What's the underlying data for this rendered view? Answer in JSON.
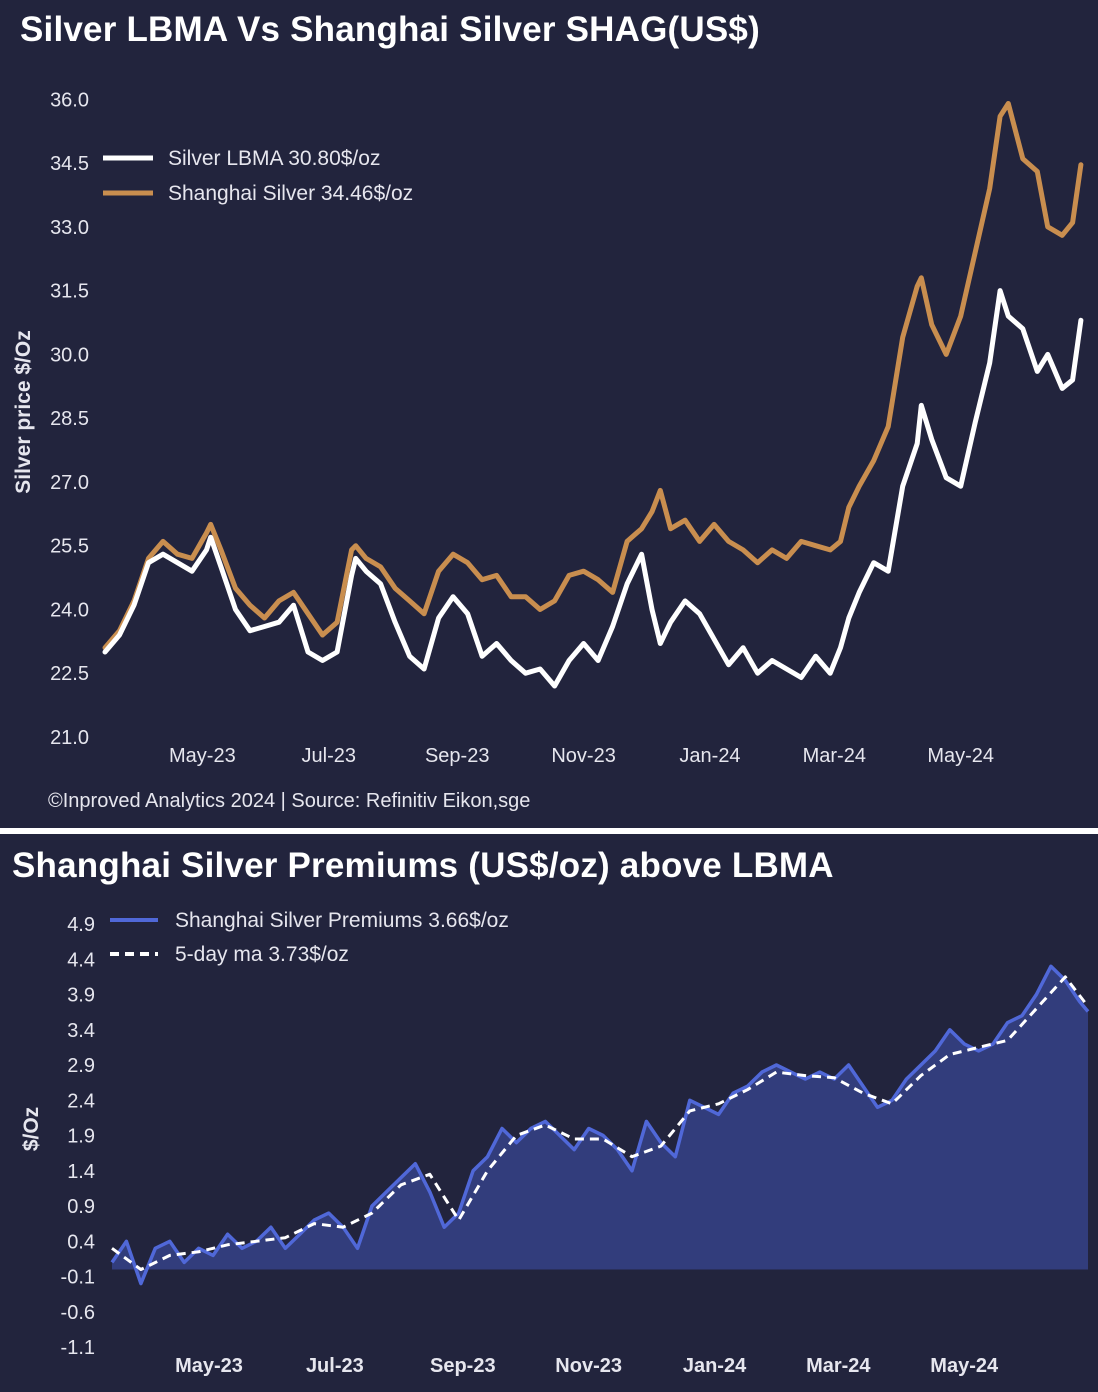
{
  "colors": {
    "background": "#22243d",
    "lbma": "#ffffff",
    "shanghai": "#c98e4f",
    "premium_line": "#5068d8",
    "premium_fill": "#323d7c",
    "ma_line": "#ffffff",
    "text": "#e6e6ee"
  },
  "chart_data": [
    {
      "type": "line",
      "title": "Silver LBMA Vs Shanghai Silver SHAG(US$)",
      "xlabel": "",
      "ylabel": "Silver price $/Oz",
      "ylim": [
        21.0,
        36.5
      ],
      "yticks": [
        "21.0",
        "22.5",
        "24.0",
        "25.5",
        "27.0",
        "28.5",
        "30.0",
        "31.5",
        "33.0",
        "34.5",
        "36.0"
      ],
      "xtick_labels": [
        "May-23",
        "Jul-23",
        "Sep-23",
        "Nov-23",
        "Jan-24",
        "Mar-24",
        "May-24"
      ],
      "x_range": [
        "2023-03-15",
        "2024-06-30"
      ],
      "legend_position": "top-left",
      "source": "©Inproved Analytics 2024 | Source: Refinitiv Eikon,sge",
      "series": [
        {
          "name": "Silver LBMA",
          "legend": "Silver LBMA 30.80$/oz",
          "dates": [
            "2023-03-15",
            "2023-03-22",
            "2023-03-29",
            "2023-04-05",
            "2023-04-12",
            "2023-04-19",
            "2023-04-26",
            "2023-05-03",
            "2023-05-05",
            "2023-05-10",
            "2023-05-17",
            "2023-05-24",
            "2023-05-31",
            "2023-06-07",
            "2023-06-14",
            "2023-06-21",
            "2023-06-28",
            "2023-07-05",
            "2023-07-12",
            "2023-07-14",
            "2023-07-19",
            "2023-07-26",
            "2023-08-02",
            "2023-08-09",
            "2023-08-16",
            "2023-08-23",
            "2023-08-30",
            "2023-09-06",
            "2023-09-13",
            "2023-09-20",
            "2023-09-27",
            "2023-10-04",
            "2023-10-11",
            "2023-10-18",
            "2023-10-25",
            "2023-11-01",
            "2023-11-08",
            "2023-11-15",
            "2023-11-22",
            "2023-11-29",
            "2023-12-04",
            "2023-12-08",
            "2023-12-13",
            "2023-12-20",
            "2023-12-27",
            "2024-01-03",
            "2024-01-10",
            "2024-01-17",
            "2024-01-24",
            "2024-01-31",
            "2024-02-07",
            "2024-02-14",
            "2024-02-21",
            "2024-02-28",
            "2024-03-04",
            "2024-03-08",
            "2024-03-13",
            "2024-03-20",
            "2024-03-27",
            "2024-04-03",
            "2024-04-10",
            "2024-04-12",
            "2024-04-17",
            "2024-04-24",
            "2024-05-01",
            "2024-05-08",
            "2024-05-15",
            "2024-05-20",
            "2024-05-24",
            "2024-05-31",
            "2024-06-07",
            "2024-06-12",
            "2024-06-19",
            "2024-06-24",
            "2024-06-28"
          ],
          "values": [
            23.0,
            23.4,
            24.1,
            25.1,
            25.3,
            25.1,
            24.9,
            25.4,
            25.7,
            25.0,
            24.0,
            23.5,
            23.6,
            23.7,
            24.1,
            23.0,
            22.8,
            23.0,
            24.8,
            25.2,
            24.9,
            24.6,
            23.7,
            22.9,
            22.6,
            23.8,
            24.3,
            23.9,
            22.9,
            23.2,
            22.8,
            22.5,
            22.6,
            22.2,
            22.8,
            23.2,
            22.8,
            23.6,
            24.6,
            25.3,
            24.0,
            23.2,
            23.7,
            24.2,
            23.9,
            23.3,
            22.7,
            23.1,
            22.5,
            22.8,
            22.6,
            22.4,
            22.9,
            22.5,
            23.1,
            23.8,
            24.4,
            25.1,
            24.9,
            26.9,
            27.9,
            28.8,
            28.0,
            27.1,
            26.9,
            28.4,
            29.8,
            31.5,
            30.9,
            30.6,
            29.6,
            30.0,
            29.2,
            29.4,
            30.8
          ]
        },
        {
          "name": "Shanghai Silver",
          "legend": "Shanghai Silver 34.46$/oz",
          "dates": [
            "2023-03-15",
            "2023-03-22",
            "2023-03-29",
            "2023-04-05",
            "2023-04-12",
            "2023-04-19",
            "2023-04-26",
            "2023-05-03",
            "2023-05-05",
            "2023-05-10",
            "2023-05-17",
            "2023-05-24",
            "2023-05-31",
            "2023-06-07",
            "2023-06-14",
            "2023-06-21",
            "2023-06-28",
            "2023-07-05",
            "2023-07-12",
            "2023-07-14",
            "2023-07-19",
            "2023-07-26",
            "2023-08-02",
            "2023-08-09",
            "2023-08-16",
            "2023-08-23",
            "2023-08-30",
            "2023-09-06",
            "2023-09-13",
            "2023-09-20",
            "2023-09-27",
            "2023-10-04",
            "2023-10-11",
            "2023-10-18",
            "2023-10-25",
            "2023-11-01",
            "2023-11-08",
            "2023-11-15",
            "2023-11-22",
            "2023-11-29",
            "2023-12-04",
            "2023-12-08",
            "2023-12-13",
            "2023-12-20",
            "2023-12-27",
            "2024-01-03",
            "2024-01-10",
            "2024-01-17",
            "2024-01-24",
            "2024-01-31",
            "2024-02-07",
            "2024-02-14",
            "2024-02-21",
            "2024-02-28",
            "2024-03-04",
            "2024-03-08",
            "2024-03-13",
            "2024-03-20",
            "2024-03-27",
            "2024-04-03",
            "2024-04-10",
            "2024-04-12",
            "2024-04-17",
            "2024-04-24",
            "2024-05-01",
            "2024-05-08",
            "2024-05-15",
            "2024-05-20",
            "2024-05-24",
            "2024-05-31",
            "2024-06-07",
            "2024-06-12",
            "2024-06-19",
            "2024-06-24",
            "2024-06-28"
          ],
          "values": [
            23.1,
            23.5,
            24.2,
            25.2,
            25.6,
            25.3,
            25.2,
            25.8,
            26.0,
            25.4,
            24.5,
            24.1,
            23.8,
            24.2,
            24.4,
            23.9,
            23.4,
            23.7,
            25.4,
            25.5,
            25.2,
            25.0,
            24.5,
            24.2,
            23.9,
            24.9,
            25.3,
            25.1,
            24.7,
            24.8,
            24.3,
            24.3,
            24.0,
            24.2,
            24.8,
            24.9,
            24.7,
            24.4,
            25.6,
            25.9,
            26.3,
            26.8,
            25.9,
            26.1,
            25.6,
            26.0,
            25.6,
            25.4,
            25.1,
            25.4,
            25.2,
            25.6,
            25.5,
            25.4,
            25.6,
            26.4,
            26.9,
            27.5,
            28.3,
            30.4,
            31.6,
            31.8,
            30.7,
            30.0,
            30.9,
            32.4,
            33.9,
            35.6,
            35.9,
            34.6,
            34.3,
            33.0,
            32.8,
            33.1,
            34.46
          ]
        }
      ]
    },
    {
      "type": "area",
      "title": "Shanghai Silver Premiums (US$/oz) above LBMA",
      "xlabel": "",
      "ylabel": "$/Oz",
      "ylim": [
        -1.1,
        5.0
      ],
      "yticks": [
        "-1.1",
        "-0.6",
        "-0.1",
        "0.4",
        "0.9",
        "1.4",
        "1.9",
        "2.4",
        "2.9",
        "3.4",
        "3.9",
        "4.4",
        "4.9"
      ],
      "xtick_labels": [
        "May-23",
        "Jul-23",
        "Sep-23",
        "Nov-23",
        "Jan-24",
        "Mar-24",
        "May-24"
      ],
      "x_range": [
        "2023-03-15",
        "2024-06-30"
      ],
      "legend_position": "top-left",
      "series": [
        {
          "name": "Shanghai Silver Premiums",
          "legend": "Shanghai Silver Premiums 3.66$/oz",
          "dates": [
            "2023-03-15",
            "2023-03-22",
            "2023-03-29",
            "2023-04-05",
            "2023-04-12",
            "2023-04-19",
            "2023-04-26",
            "2023-05-03",
            "2023-05-10",
            "2023-05-17",
            "2023-05-24",
            "2023-05-31",
            "2023-06-07",
            "2023-06-14",
            "2023-06-21",
            "2023-06-28",
            "2023-07-05",
            "2023-07-12",
            "2023-07-19",
            "2023-07-26",
            "2023-08-02",
            "2023-08-09",
            "2023-08-16",
            "2023-08-23",
            "2023-08-30",
            "2023-09-06",
            "2023-09-13",
            "2023-09-20",
            "2023-09-27",
            "2023-10-04",
            "2023-10-11",
            "2023-10-18",
            "2023-10-25",
            "2023-11-01",
            "2023-11-08",
            "2023-11-15",
            "2023-11-22",
            "2023-11-29",
            "2023-12-06",
            "2023-12-13",
            "2023-12-20",
            "2023-12-27",
            "2024-01-03",
            "2024-01-10",
            "2024-01-17",
            "2024-01-24",
            "2024-01-31",
            "2024-02-07",
            "2024-02-14",
            "2024-02-21",
            "2024-02-28",
            "2024-03-06",
            "2024-03-13",
            "2024-03-20",
            "2024-03-27",
            "2024-04-03",
            "2024-04-10",
            "2024-04-17",
            "2024-04-24",
            "2024-05-01",
            "2024-05-08",
            "2024-05-15",
            "2024-05-22",
            "2024-05-29",
            "2024-06-05",
            "2024-06-12",
            "2024-06-19",
            "2024-06-26",
            "2024-06-30"
          ],
          "values": [
            0.1,
            0.4,
            -0.2,
            0.3,
            0.4,
            0.1,
            0.3,
            0.2,
            0.5,
            0.3,
            0.4,
            0.6,
            0.3,
            0.5,
            0.7,
            0.8,
            0.6,
            0.3,
            0.9,
            1.1,
            1.3,
            1.5,
            1.1,
            0.6,
            0.8,
            1.4,
            1.6,
            2.0,
            1.8,
            2.0,
            2.1,
            1.9,
            1.7,
            2.0,
            1.9,
            1.7,
            1.4,
            2.1,
            1.8,
            1.6,
            2.4,
            2.3,
            2.2,
            2.5,
            2.6,
            2.8,
            2.9,
            2.8,
            2.7,
            2.8,
            2.7,
            2.9,
            2.6,
            2.3,
            2.4,
            2.7,
            2.9,
            3.1,
            3.4,
            3.2,
            3.1,
            3.2,
            3.5,
            3.6,
            3.9,
            4.3,
            4.1,
            3.8,
            3.66
          ]
        },
        {
          "name": "5-day ma",
          "legend": "5-day ma 3.73$/oz",
          "dates": [
            "2023-03-15",
            "2023-03-29",
            "2023-04-12",
            "2023-04-26",
            "2023-05-10",
            "2023-05-24",
            "2023-06-07",
            "2023-06-21",
            "2023-07-05",
            "2023-07-19",
            "2023-08-02",
            "2023-08-16",
            "2023-08-30",
            "2023-09-13",
            "2023-09-27",
            "2023-10-11",
            "2023-10-25",
            "2023-11-08",
            "2023-11-22",
            "2023-12-06",
            "2023-12-20",
            "2024-01-03",
            "2024-01-17",
            "2024-01-31",
            "2024-02-14",
            "2024-02-28",
            "2024-03-13",
            "2024-03-27",
            "2024-04-10",
            "2024-04-24",
            "2024-05-08",
            "2024-05-22",
            "2024-06-05",
            "2024-06-19",
            "2024-06-30"
          ],
          "values": [
            0.3,
            0.0,
            0.2,
            0.25,
            0.35,
            0.4,
            0.45,
            0.65,
            0.6,
            0.8,
            1.2,
            1.35,
            0.7,
            1.4,
            1.9,
            2.05,
            1.85,
            1.85,
            1.6,
            1.75,
            2.25,
            2.35,
            2.55,
            2.8,
            2.75,
            2.72,
            2.5,
            2.35,
            2.75,
            3.05,
            3.15,
            3.25,
            3.7,
            4.15,
            3.73
          ]
        }
      ]
    }
  ]
}
